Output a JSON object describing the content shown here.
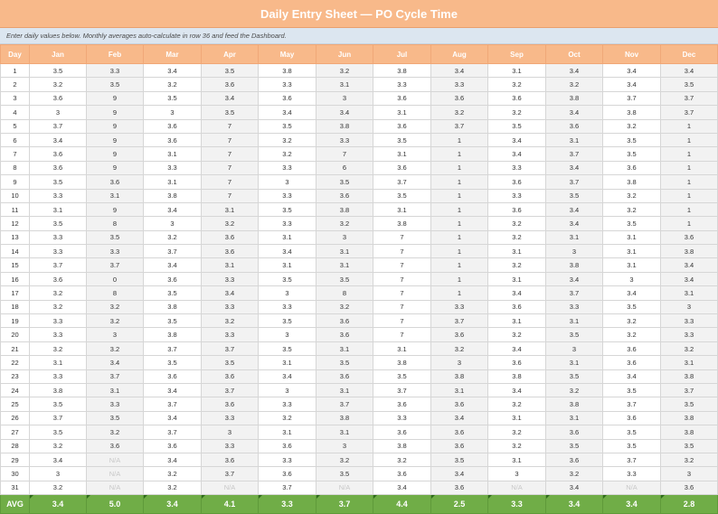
{
  "title": "Daily Entry Sheet — PO Cycle Time",
  "note": "Enter daily values below. Monthly averages auto-calculate in row 36 and feed the Dashboard.",
  "columns": [
    "Day",
    "Jan",
    "Feb",
    "Mar",
    "Apr",
    "May",
    "Jun",
    "Jul",
    "Aug",
    "Sep",
    "Oct",
    "Nov",
    "Dec"
  ],
  "rows": [
    {
      "day": "1",
      "values": [
        "3.5",
        "3.3",
        "3.4",
        "3.5",
        "3.8",
        "3.2",
        "3.8",
        "3.4",
        "3.1",
        "3.4",
        "3.4",
        "3.4"
      ]
    },
    {
      "day": "2",
      "values": [
        "3.2",
        "3.5",
        "3.2",
        "3.6",
        "3.3",
        "3.1",
        "3.3",
        "3.3",
        "3.2",
        "3.2",
        "3.4",
        "3.5"
      ]
    },
    {
      "day": "3",
      "values": [
        "3.6",
        "9",
        "3.5",
        "3.4",
        "3.6",
        "3",
        "3.6",
        "3.6",
        "3.6",
        "3.8",
        "3.7",
        "3.7"
      ]
    },
    {
      "day": "4",
      "values": [
        "3",
        "9",
        "3",
        "3.5",
        "3.4",
        "3.4",
        "3.1",
        "3.2",
        "3.2",
        "3.4",
        "3.8",
        "3.7"
      ]
    },
    {
      "day": "5",
      "values": [
        "3.7",
        "9",
        "3.6",
        "7",
        "3.5",
        "3.8",
        "3.6",
        "3.7",
        "3.5",
        "3.6",
        "3.2",
        "1"
      ]
    },
    {
      "day": "6",
      "values": [
        "3.4",
        "9",
        "3.6",
        "7",
        "3.2",
        "3.3",
        "3.5",
        "1",
        "3.4",
        "3.1",
        "3.5",
        "1"
      ]
    },
    {
      "day": "7",
      "values": [
        "3.6",
        "9",
        "3.1",
        "7",
        "3.2",
        "7",
        "3.1",
        "1",
        "3.4",
        "3.7",
        "3.5",
        "1"
      ]
    },
    {
      "day": "8",
      "values": [
        "3.6",
        "9",
        "3.3",
        "7",
        "3.3",
        "6",
        "3.6",
        "1",
        "3.3",
        "3.4",
        "3.6",
        "1"
      ]
    },
    {
      "day": "9",
      "values": [
        "3.5",
        "3.6",
        "3.1",
        "7",
        "3",
        "3.5",
        "3.7",
        "1",
        "3.6",
        "3.7",
        "3.8",
        "1"
      ]
    },
    {
      "day": "10",
      "values": [
        "3.3",
        "3.1",
        "3.8",
        "7",
        "3.3",
        "3.6",
        "3.5",
        "1",
        "3.3",
        "3.5",
        "3.2",
        "1"
      ]
    },
    {
      "day": "11",
      "values": [
        "3.1",
        "9",
        "3.4",
        "3.1",
        "3.5",
        "3.8",
        "3.1",
        "1",
        "3.6",
        "3.4",
        "3.2",
        "1"
      ]
    },
    {
      "day": "12",
      "values": [
        "3.5",
        "8",
        "3",
        "3.2",
        "3.3",
        "3.2",
        "3.8",
        "1",
        "3.2",
        "3.4",
        "3.5",
        "1"
      ]
    },
    {
      "day": "13",
      "values": [
        "3.3",
        "3.5",
        "3.2",
        "3.6",
        "3.1",
        "3",
        "7",
        "1",
        "3.2",
        "3.1",
        "3.1",
        "3.6"
      ]
    },
    {
      "day": "14",
      "values": [
        "3.3",
        "3.3",
        "3.7",
        "3.6",
        "3.4",
        "3.1",
        "7",
        "1",
        "3.1",
        "3",
        "3.1",
        "3.8"
      ]
    },
    {
      "day": "15",
      "values": [
        "3.7",
        "3.7",
        "3.4",
        "3.1",
        "3.1",
        "3.1",
        "7",
        "1",
        "3.2",
        "3.8",
        "3.1",
        "3.4"
      ]
    },
    {
      "day": "16",
      "values": [
        "3.6",
        "0",
        "3.6",
        "3.3",
        "3.5",
        "3.5",
        "7",
        "1",
        "3.1",
        "3.4",
        "3",
        "3.4"
      ]
    },
    {
      "day": "17",
      "values": [
        "3.2",
        "8",
        "3.5",
        "3.4",
        "3",
        "8",
        "7",
        "1",
        "3.4",
        "3.7",
        "3.4",
        "3.1"
      ]
    },
    {
      "day": "18",
      "values": [
        "3.2",
        "3.2",
        "3.8",
        "3.3",
        "3.3",
        "3.2",
        "7",
        "3.3",
        "3.6",
        "3.3",
        "3.5",
        "3"
      ]
    },
    {
      "day": "19",
      "values": [
        "3.3",
        "3.2",
        "3.5",
        "3.2",
        "3.5",
        "3.6",
        "7",
        "3.7",
        "3.1",
        "3.1",
        "3.2",
        "3.3"
      ]
    },
    {
      "day": "20",
      "values": [
        "3.3",
        "3",
        "3.8",
        "3.3",
        "3",
        "3.6",
        "7",
        "3.6",
        "3.2",
        "3.5",
        "3.2",
        "3.3"
      ]
    },
    {
      "day": "21",
      "values": [
        "3.2",
        "3.2",
        "3.7",
        "3.7",
        "3.5",
        "3.1",
        "3.1",
        "3.2",
        "3.4",
        "3",
        "3.6",
        "3.2"
      ]
    },
    {
      "day": "22",
      "values": [
        "3.1",
        "3.4",
        "3.5",
        "3.5",
        "3.1",
        "3.5",
        "3.8",
        "3",
        "3.6",
        "3.1",
        "3.6",
        "3.1"
      ]
    },
    {
      "day": "23",
      "values": [
        "3.3",
        "3.7",
        "3.6",
        "3.6",
        "3.4",
        "3.6",
        "3.5",
        "3.8",
        "3.8",
        "3.5",
        "3.4",
        "3.8"
      ]
    },
    {
      "day": "24",
      "values": [
        "3.8",
        "3.1",
        "3.4",
        "3.7",
        "3",
        "3.1",
        "3.7",
        "3.1",
        "3.4",
        "3.2",
        "3.5",
        "3.7"
      ]
    },
    {
      "day": "25",
      "values": [
        "3.5",
        "3.3",
        "3.7",
        "3.6",
        "3.3",
        "3.7",
        "3.6",
        "3.6",
        "3.2",
        "3.8",
        "3.7",
        "3.5"
      ]
    },
    {
      "day": "26",
      "values": [
        "3.7",
        "3.5",
        "3.4",
        "3.3",
        "3.2",
        "3.8",
        "3.3",
        "3.4",
        "3.1",
        "3.1",
        "3.6",
        "3.8"
      ]
    },
    {
      "day": "27",
      "values": [
        "3.5",
        "3.2",
        "3.7",
        "3",
        "3.1",
        "3.1",
        "3.6",
        "3.6",
        "3.2",
        "3.6",
        "3.5",
        "3.8"
      ]
    },
    {
      "day": "28",
      "values": [
        "3.2",
        "3.6",
        "3.6",
        "3.3",
        "3.6",
        "3",
        "3.8",
        "3.6",
        "3.2",
        "3.5",
        "3.5",
        "3.5"
      ]
    },
    {
      "day": "29",
      "values": [
        "3.4",
        "N/A",
        "3.4",
        "3.6",
        "3.3",
        "3.2",
        "3.2",
        "3.5",
        "3.1",
        "3.6",
        "3.7",
        "3.2"
      ]
    },
    {
      "day": "30",
      "values": [
        "3",
        "N/A",
        "3.2",
        "3.7",
        "3.6",
        "3.5",
        "3.6",
        "3.4",
        "3",
        "3.2",
        "3.3",
        "3"
      ]
    },
    {
      "day": "31",
      "values": [
        "3.2",
        "N/A",
        "3.2",
        "N/A",
        "3.7",
        "N/A",
        "3.4",
        "3.6",
        "N/A",
        "3.4",
        "N/A",
        "3.6"
      ]
    }
  ],
  "avg": {
    "label": "AVG",
    "values": [
      "3.4",
      "5.0",
      "3.4",
      "4.1",
      "3.3",
      "3.7",
      "4.4",
      "2.5",
      "3.3",
      "3.4",
      "3.4",
      "2.8"
    ]
  },
  "colors": {
    "header": "#f8b98a",
    "note": "#dce6f0",
    "avg": "#70ad47",
    "alt": "#f2f2f2"
  }
}
